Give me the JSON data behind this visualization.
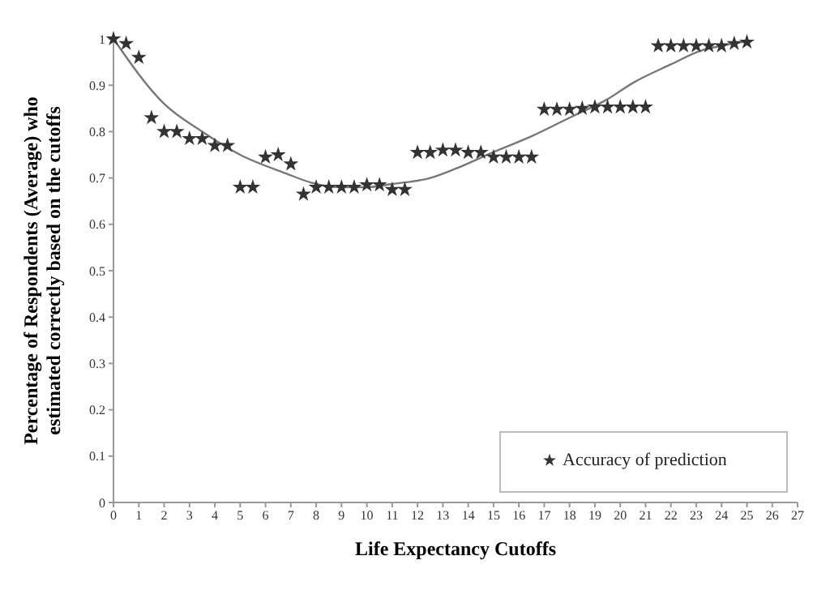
{
  "chart_data": {
    "type": "scatter",
    "xlabel": "Life Expectancy Cutoffs",
    "ylabel": "Percentage of Respondents (Average) who\nestimated correctly based on the cutoffs",
    "xlim": [
      0,
      27
    ],
    "xticks": [
      0,
      1,
      2,
      3,
      4,
      5,
      6,
      7,
      8,
      9,
      10,
      11,
      12,
      13,
      14,
      15,
      16,
      17,
      18,
      19,
      20,
      21,
      22,
      23,
      24,
      25,
      26,
      27
    ],
    "ylim": [
      0,
      1
    ],
    "yticks": [
      0,
      0.1,
      0.2,
      0.3,
      0.4,
      0.5,
      0.6,
      0.7,
      0.8,
      0.9,
      1
    ],
    "grid": false,
    "legend": "bottom right",
    "series": [
      {
        "name": "Accuracy of prediction",
        "marker": "star",
        "color": "#333333",
        "x": [
          0,
          0.5,
          1,
          1.5,
          2,
          2.5,
          3,
          3.5,
          4,
          4.5,
          5,
          5.5,
          6,
          6.5,
          7,
          7.5,
          8,
          8.5,
          9,
          9.5,
          10,
          10.5,
          11,
          11.5,
          12,
          12.5,
          13,
          13.5,
          14,
          14.5,
          15,
          15.5,
          16,
          16.5,
          17,
          17.5,
          18,
          18.5,
          19,
          19.5,
          20,
          20.5,
          21,
          21.5,
          22,
          22.5,
          23,
          23.5,
          24,
          24.5,
          25
        ],
        "values": [
          1.0,
          0.99,
          0.96,
          0.83,
          0.8,
          0.8,
          0.785,
          0.785,
          0.77,
          0.77,
          0.68,
          0.68,
          0.745,
          0.75,
          0.73,
          0.665,
          0.68,
          0.68,
          0.68,
          0.68,
          0.685,
          0.685,
          0.675,
          0.675,
          0.755,
          0.755,
          0.76,
          0.76,
          0.755,
          0.755,
          0.745,
          0.745,
          0.745,
          0.745,
          0.848,
          0.848,
          0.848,
          0.85,
          0.853,
          0.853,
          0.853,
          0.853,
          0.853,
          0.985,
          0.985,
          0.985,
          0.985,
          0.985,
          0.985,
          0.99,
          0.993
        ]
      },
      {
        "type": "line",
        "marker": "none",
        "color": "#777777",
        "x": [
          0,
          2,
          3.5,
          5,
          6.8,
          7.8,
          9,
          10,
          11,
          12.5,
          13.5,
          15,
          16.5,
          18,
          19.5,
          20.5,
          22,
          23.2,
          24,
          25
        ],
        "values": [
          1.0,
          0.86,
          0.8,
          0.75,
          0.71,
          0.69,
          0.68,
          0.68,
          0.687,
          0.7,
          0.72,
          0.756,
          0.79,
          0.83,
          0.87,
          0.905,
          0.945,
          0.975,
          0.985,
          0.995
        ]
      }
    ]
  }
}
